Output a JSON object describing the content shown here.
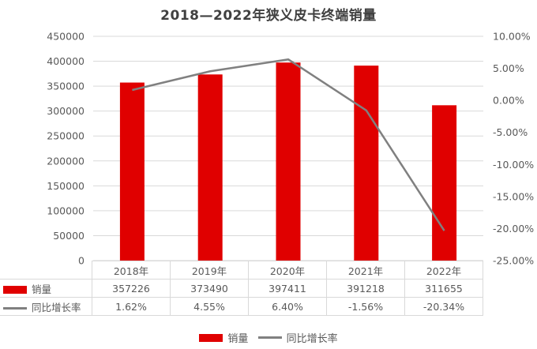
{
  "chart_data": {
    "type": "bar+line",
    "title": "2018—2022年狭义皮卡终端销量",
    "categories": [
      "2018年",
      "2019年",
      "2020年",
      "2021年",
      "2022年"
    ],
    "series": [
      {
        "name": "销量",
        "type": "bar",
        "axis": "left",
        "color": "#e00000",
        "values": [
          357226,
          373490,
          397411,
          391218,
          311655
        ]
      },
      {
        "name": "同比增长率",
        "type": "line",
        "axis": "right",
        "color": "#808080",
        "values": [
          1.62,
          4.55,
          6.4,
          -1.56,
          -20.34
        ],
        "labels": [
          "1.62%",
          "4.55%",
          "6.40%",
          "-1.56%",
          "-20.34%"
        ]
      }
    ],
    "left_axis": {
      "ylim": [
        0,
        450000
      ],
      "ticks": [
        "0",
        "50000",
        "100000",
        "150000",
        "200000",
        "250000",
        "300000",
        "350000",
        "400000",
        "450000"
      ]
    },
    "right_axis": {
      "ylim": [
        -25,
        10
      ],
      "ticks": [
        "-25.00%",
        "-20.00%",
        "-15.00%",
        "-10.00%",
        "-5.00%",
        "0.00%",
        "5.00%",
        "10.00%"
      ]
    },
    "grid": true,
    "data_table": true,
    "legend_position": "bottom"
  },
  "title": "2018—2022年狭义皮卡终端销量",
  "table": {
    "headers": [
      "2018年",
      "2019年",
      "2020年",
      "2021年",
      "2022年"
    ],
    "row_sales_label": "销量",
    "row_sales": [
      "357226",
      "373490",
      "397411",
      "391218",
      "311655"
    ],
    "row_growth_label": "同比增长率",
    "row_growth": [
      "1.62%",
      "4.55%",
      "6.40%",
      "-1.56%",
      "-20.34%"
    ]
  },
  "legend": {
    "sales": "销量",
    "growth": "同比增长率"
  },
  "colors": {
    "bar": "#e00000",
    "line": "#808080",
    "grid": "#d9d9d9"
  }
}
